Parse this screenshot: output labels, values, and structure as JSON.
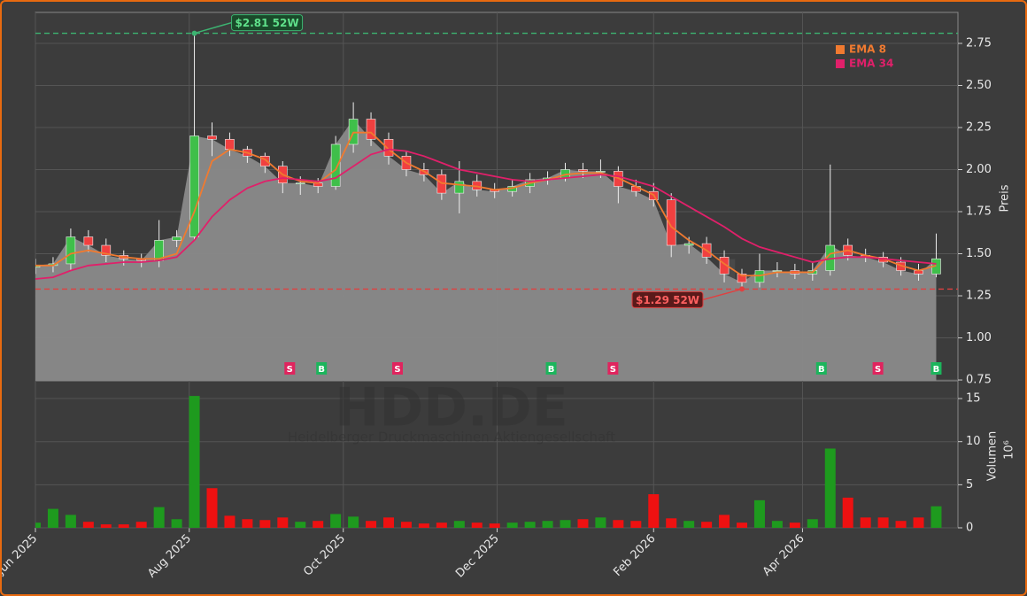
{
  "chart_data": [
    {
      "type": "candlestick",
      "watermark": "forexsignale.trade",
      "title": "HDD.DE",
      "subtitle": "Heidelberger Druckmaschinen Aktiengesellschaft",
      "ylabel": "Preis",
      "categories": [
        null,
        null,
        null,
        null,
        null,
        null,
        null,
        null,
        null,
        null,
        null,
        null,
        null,
        null,
        null,
        null,
        null,
        null,
        null,
        null,
        null,
        null,
        null,
        null,
        null,
        null,
        null,
        null,
        null,
        null,
        null,
        null,
        null,
        null,
        null,
        null,
        null,
        null,
        null,
        null,
        null,
        null,
        null,
        null,
        null,
        null,
        null,
        null,
        null,
        null,
        null,
        null
      ],
      "open": [
        1.42,
        1.43,
        1.44,
        1.6,
        1.55,
        1.49,
        1.47,
        1.46,
        1.58,
        1.6,
        2.2,
        2.18,
        2.12,
        2.08,
        2.02,
        1.92,
        1.92,
        1.9,
        2.15,
        2.3,
        2.18,
        2.08,
        2.0,
        1.97,
        1.86,
        1.93,
        1.88,
        1.87,
        1.9,
        1.94,
        1.95,
        2.0,
        1.99,
        1.99,
        1.9,
        1.87,
        1.82,
        1.55,
        1.56,
        1.48,
        1.38,
        1.33,
        1.4,
        1.4,
        1.38,
        1.4,
        1.55,
        1.49,
        1.48,
        1.45,
        1.4,
        1.38
      ],
      "high": [
        1.47,
        1.48,
        1.65,
        1.64,
        1.59,
        1.52,
        1.5,
        1.7,
        1.64,
        2.81,
        2.28,
        2.22,
        2.14,
        2.1,
        2.05,
        1.96,
        1.95,
        2.2,
        2.4,
        2.34,
        2.22,
        2.11,
        2.04,
        2.0,
        2.05,
        1.97,
        1.92,
        1.94,
        1.98,
        1.99,
        2.04,
        2.04,
        2.06,
        2.02,
        1.94,
        1.92,
        1.86,
        1.6,
        1.6,
        1.52,
        1.41,
        1.5,
        1.45,
        1.44,
        1.45,
        2.03,
        1.59,
        1.53,
        1.51,
        1.48,
        1.44,
        1.62
      ],
      "low": [
        1.38,
        1.39,
        1.4,
        1.51,
        1.45,
        1.43,
        1.42,
        1.42,
        1.54,
        1.58,
        2.08,
        2.08,
        2.04,
        1.98,
        1.86,
        1.85,
        1.86,
        1.88,
        2.1,
        2.14,
        2.03,
        1.96,
        1.93,
        1.82,
        1.74,
        1.84,
        1.83,
        1.84,
        1.86,
        1.91,
        1.93,
        1.95,
        1.95,
        1.8,
        1.84,
        1.78,
        1.48,
        1.5,
        1.44,
        1.33,
        1.29,
        1.3,
        1.36,
        1.35,
        1.34,
        1.37,
        1.46,
        1.45,
        1.42,
        1.37,
        1.34,
        1.36
      ],
      "close": [
        1.43,
        1.44,
        1.6,
        1.55,
        1.49,
        1.47,
        1.46,
        1.58,
        1.6,
        2.2,
        2.18,
        2.12,
        2.08,
        2.02,
        1.92,
        1.92,
        1.9,
        2.15,
        2.3,
        2.18,
        2.08,
        2.0,
        1.97,
        1.86,
        1.93,
        1.88,
        1.87,
        1.9,
        1.94,
        1.95,
        2.0,
        1.99,
        1.99,
        1.9,
        1.87,
        1.82,
        1.55,
        1.56,
        1.48,
        1.38,
        1.33,
        1.4,
        1.4,
        1.38,
        1.4,
        1.55,
        1.49,
        1.48,
        1.45,
        1.4,
        1.38,
        1.47
      ],
      "up_color": "#3fbf4a",
      "down_color": "#f04040",
      "area_color": "#8a8a8a",
      "series": [
        {
          "name": "EMA 8",
          "color": "#f07a30",
          "values": [
            1.43,
            1.43,
            1.5,
            1.52,
            1.5,
            1.48,
            1.47,
            1.47,
            1.5,
            1.75,
            2.05,
            2.12,
            2.1,
            2.06,
            1.97,
            1.93,
            1.92,
            2.0,
            2.22,
            2.22,
            2.12,
            2.04,
            1.99,
            1.92,
            1.91,
            1.9,
            1.88,
            1.89,
            1.92,
            1.94,
            1.97,
            1.98,
            1.98,
            1.95,
            1.9,
            1.85,
            1.66,
            1.58,
            1.52,
            1.44,
            1.37,
            1.37,
            1.39,
            1.39,
            1.39,
            1.5,
            1.52,
            1.49,
            1.47,
            1.43,
            1.4,
            1.43
          ]
        },
        {
          "name": "EMA 34",
          "color": "#e0206a",
          "values": [
            1.35,
            1.36,
            1.4,
            1.43,
            1.44,
            1.45,
            1.45,
            1.46,
            1.48,
            1.58,
            1.72,
            1.82,
            1.89,
            1.93,
            1.95,
            1.94,
            1.93,
            1.95,
            2.02,
            2.09,
            2.12,
            2.11,
            2.08,
            2.04,
            2.0,
            1.98,
            1.96,
            1.94,
            1.93,
            1.94,
            1.95,
            1.96,
            1.97,
            1.96,
            1.93,
            1.9,
            1.84,
            1.78,
            1.72,
            1.66,
            1.59,
            1.54,
            1.51,
            1.48,
            1.45,
            1.47,
            1.48,
            1.48,
            1.47,
            1.46,
            1.45,
            1.44
          ]
        }
      ],
      "annotations": [
        {
          "text": "$2.81 52W",
          "value": 2.81,
          "x": 9,
          "color": "#3cb371"
        },
        {
          "text": "$1.29 52W",
          "value": 1.29,
          "x": 40,
          "color": "#e04040"
        }
      ],
      "signals": [
        {
          "label": "S",
          "x": 14.4
        },
        {
          "label": "B",
          "x": 16.2
        },
        {
          "label": "S",
          "x": 20.5
        },
        {
          "label": "B",
          "x": 29.2
        },
        {
          "label": "S",
          "x": 32.7
        },
        {
          "label": "B",
          "x": 44.5
        },
        {
          "label": "S",
          "x": 47.7
        },
        {
          "label": "B",
          "x": 51
        }
      ],
      "signal_colors": {
        "S": "#e0245e",
        "B": "#1cb55c"
      },
      "xlim": [
        0,
        52.23
      ],
      "ylim": [
        0.745,
        2.934
      ],
      "yticks": [
        0.75,
        {
          "value": 1,
          "label": "1.00"
        },
        1.25,
        {
          "value": 1.5,
          "label": "1.50"
        },
        1.75,
        {
          "value": 2,
          "label": "2.00"
        },
        2.25,
        {
          "value": 2.5,
          "label": "2.50"
        },
        2.75
      ],
      "grid": true,
      "legend": "upper right"
    },
    {
      "type": "bar",
      "ylabel": "Volumen",
      "unit": "10⁶",
      "values": [
        0.6,
        2.2,
        1.5,
        0.7,
        0.4,
        0.4,
        0.7,
        2.4,
        1.0,
        15.3,
        4.6,
        1.4,
        1.0,
        0.9,
        1.2,
        0.7,
        0.8,
        1.6,
        1.3,
        0.8,
        1.2,
        0.7,
        0.5,
        0.6,
        0.8,
        0.6,
        0.5,
        0.6,
        0.7,
        0.8,
        0.9,
        1.0,
        1.2,
        0.9,
        0.8,
        3.9,
        1.1,
        0.8,
        0.7,
        1.5,
        0.6,
        3.2,
        0.8,
        0.6,
        1.0,
        9.2,
        3.5,
        1.2,
        1.2,
        0.8,
        1.2,
        2.5
      ],
      "up_color": "#1e9a1e",
      "down_color": "#ee1111",
      "xlim": [
        0,
        52.23
      ],
      "xticks": [
        {
          "value": 0,
          "label": "Jun 2025"
        },
        {
          "value": 8.71,
          "label": "Aug 2025"
        },
        {
          "value": 17.43,
          "label": "Oct 2025"
        },
        {
          "value": 26.14,
          "label": "Dec 2025"
        },
        {
          "value": 35,
          "label": "Feb 2026"
        },
        {
          "value": 43.43,
          "label": "Apr 2026"
        }
      ],
      "ylim": [
        0,
        17.06
      ],
      "yticks": [
        0,
        5,
        10,
        15
      ],
      "grid": true
    }
  ]
}
